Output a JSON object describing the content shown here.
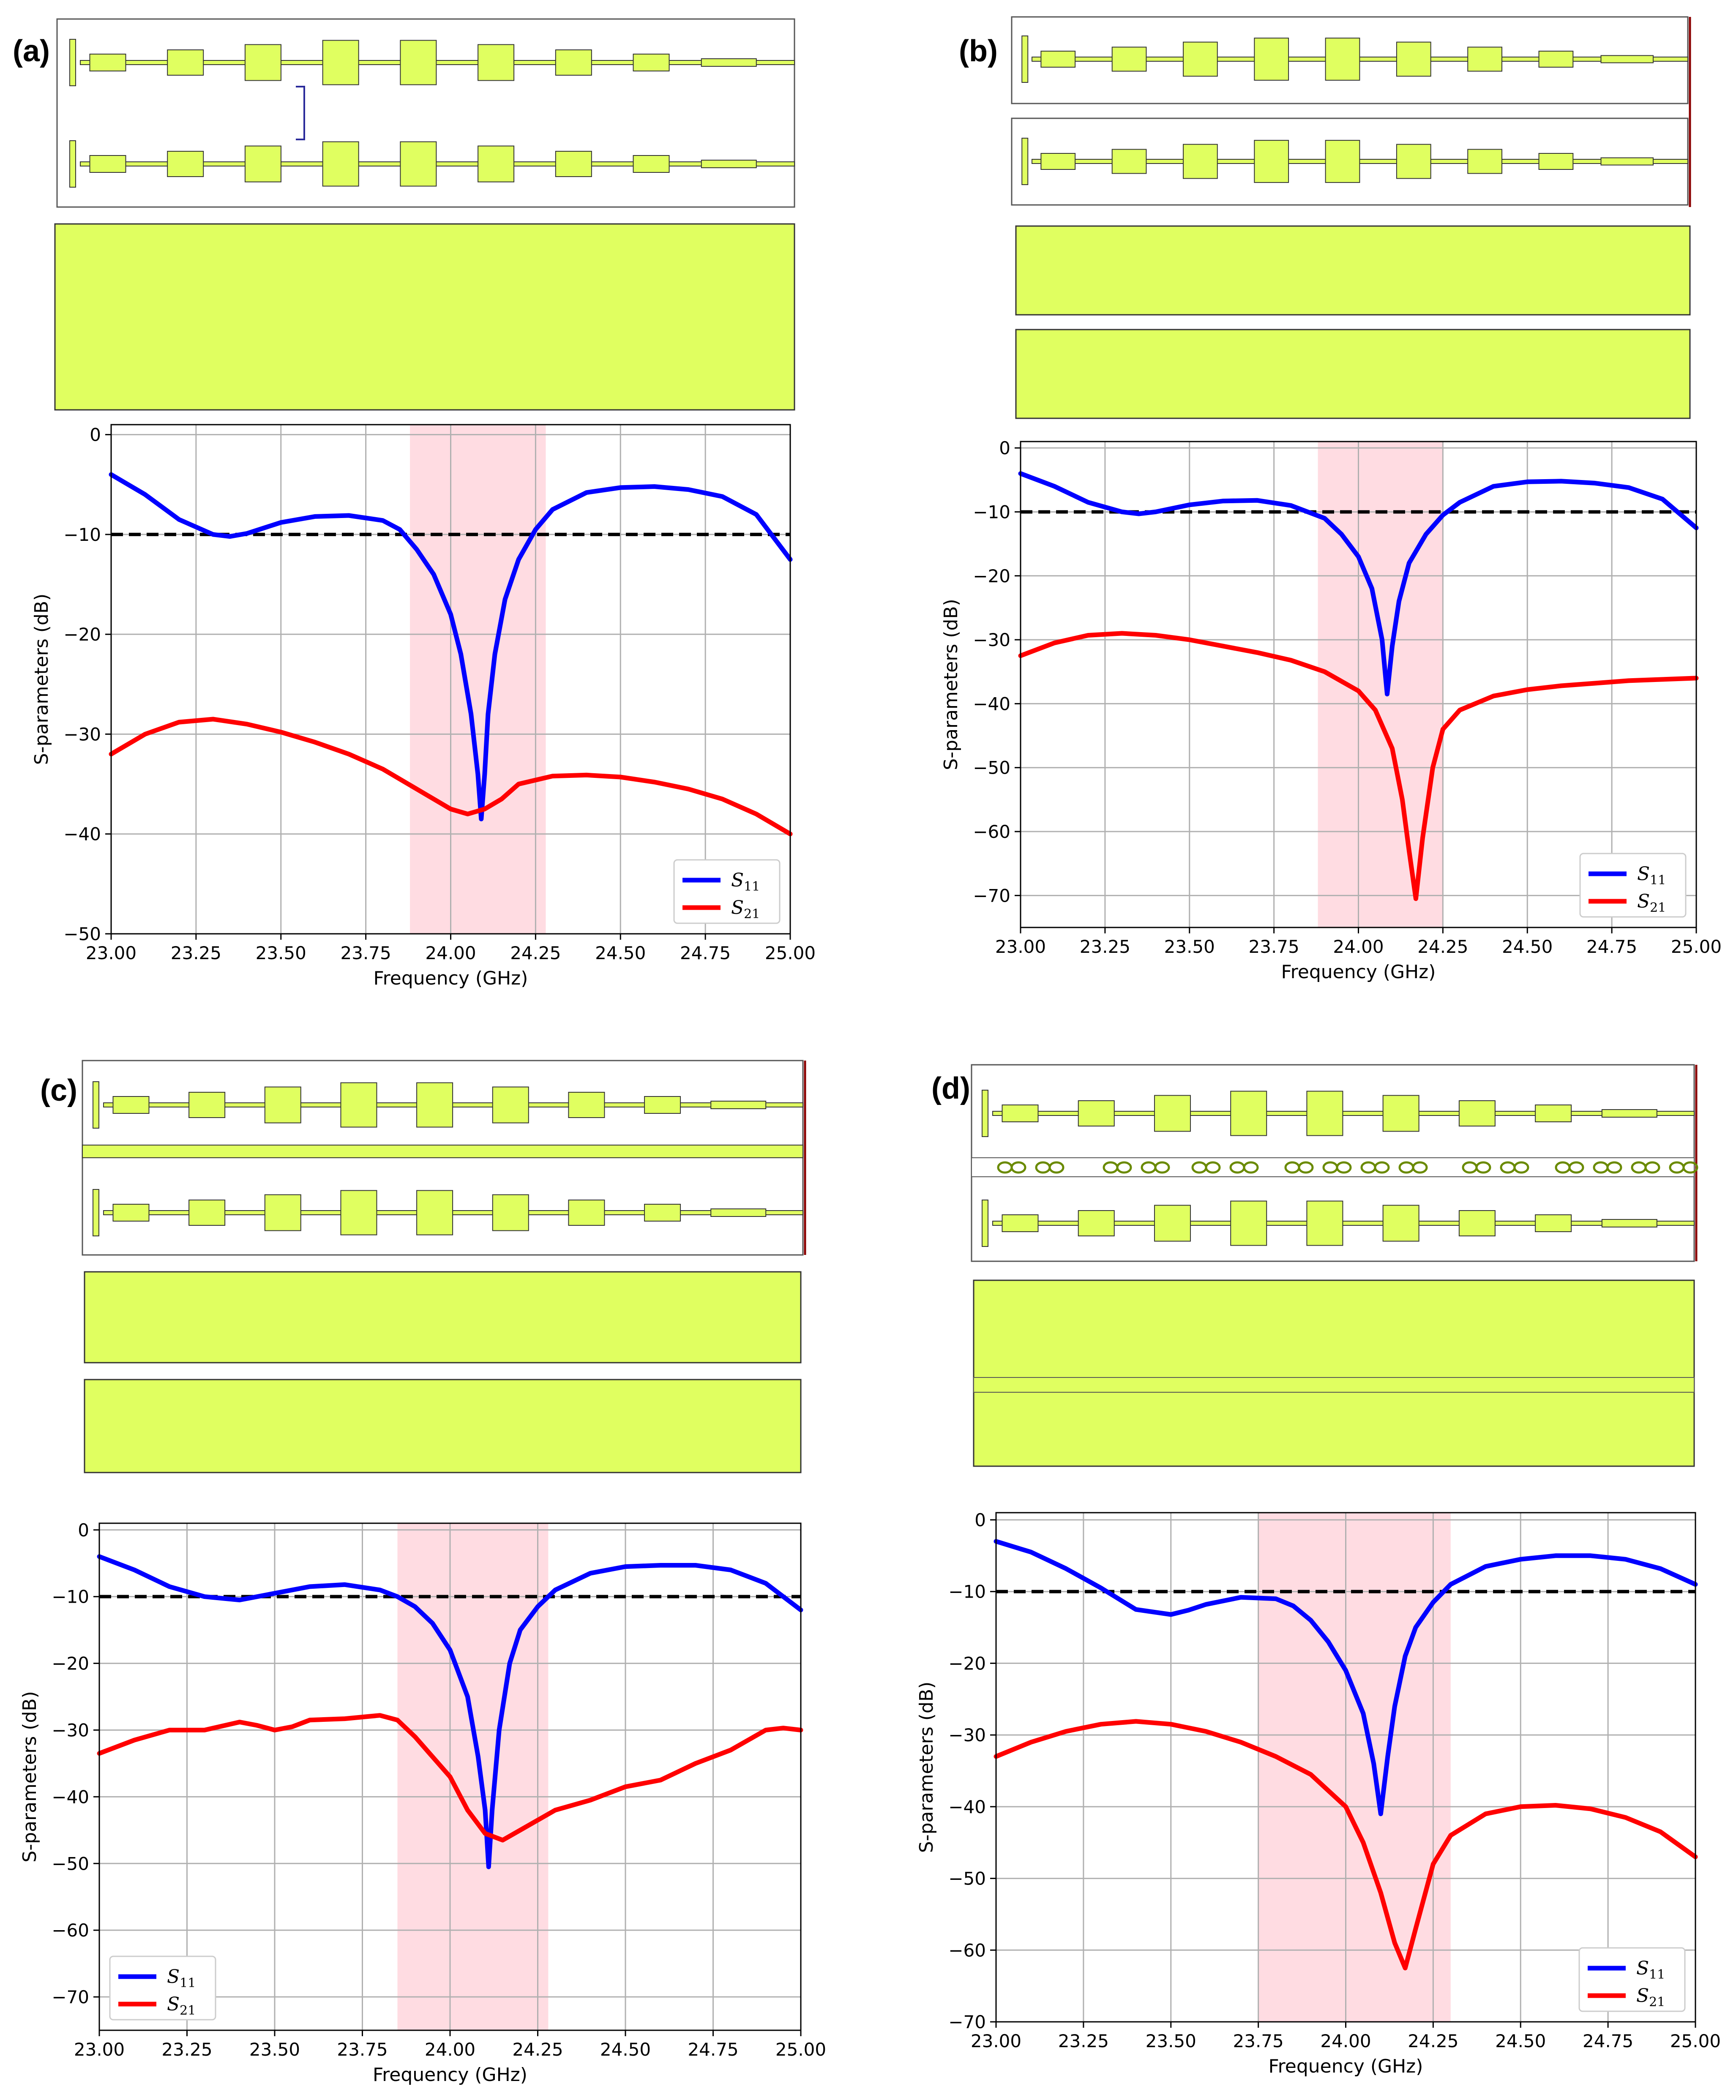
{
  "colors": {
    "patch": "#e0ff60",
    "s11": "#0000ff",
    "s21": "#ff0000",
    "band": "#ffc0cb",
    "threshold": "#000000"
  },
  "chart_data": [
    {
      "panel_label": "(a)",
      "type": "line",
      "xlabel": "Frequency (GHz)",
      "ylabel": "S-parameters (dB)",
      "xlim": [
        23.0,
        25.0
      ],
      "ylim": [
        -50,
        1
      ],
      "xticks": [
        "23.00",
        "23.25",
        "23.50",
        "23.75",
        "24.00",
        "24.25",
        "24.50",
        "24.75",
        "25.00"
      ],
      "yticks": [
        "0",
        "−10",
        "−20",
        "−30",
        "−40",
        "−50"
      ],
      "ytick_values": [
        0,
        -10,
        -20,
        -30,
        -40,
        -50
      ],
      "grid": true,
      "legend_position": "lower-right",
      "threshold_db": -10,
      "band": [
        23.88,
        24.28
      ],
      "series": [
        {
          "name": "S11",
          "x": [
            23.0,
            23.1,
            23.2,
            23.3,
            23.35,
            23.4,
            23.5,
            23.6,
            23.7,
            23.8,
            23.85,
            23.9,
            23.95,
            24.0,
            24.03,
            24.06,
            24.08,
            24.09,
            24.1,
            24.11,
            24.13,
            24.16,
            24.2,
            24.25,
            24.3,
            24.4,
            24.5,
            24.6,
            24.7,
            24.8,
            24.9,
            25.0
          ],
          "values": [
            -4,
            -6,
            -8.5,
            -10,
            -10.2,
            -9.9,
            -8.8,
            -8.2,
            -8.1,
            -8.6,
            -9.5,
            -11.5,
            -14,
            -18,
            -22,
            -28,
            -34,
            -38.5,
            -34,
            -28,
            -22,
            -16.5,
            -12.5,
            -9.5,
            -7.5,
            -5.8,
            -5.3,
            -5.2,
            -5.5,
            -6.2,
            -8,
            -12.5
          ]
        },
        {
          "name": "S21",
          "x": [
            23.0,
            23.1,
            23.2,
            23.3,
            23.4,
            23.5,
            23.6,
            23.7,
            23.8,
            23.9,
            24.0,
            24.05,
            24.1,
            24.15,
            24.2,
            24.3,
            24.4,
            24.5,
            24.6,
            24.7,
            24.8,
            24.9,
            25.0
          ],
          "values": [
            -32,
            -30,
            -28.8,
            -28.5,
            -29,
            -29.8,
            -30.8,
            -32,
            -33.5,
            -35.5,
            -37.5,
            -38,
            -37.5,
            -36.5,
            -35,
            -34.2,
            -34.1,
            -34.3,
            -34.8,
            -35.5,
            -36.5,
            -38,
            -40
          ]
        }
      ]
    },
    {
      "panel_label": "(b)",
      "type": "line",
      "xlabel": "Frequency (GHz)",
      "ylabel": "S-parameters (dB)",
      "xlim": [
        23.0,
        25.0
      ],
      "ylim": [
        -75,
        1
      ],
      "xticks": [
        "23.00",
        "23.25",
        "23.50",
        "23.75",
        "24.00",
        "24.25",
        "24.50",
        "24.75",
        "25.00"
      ],
      "yticks": [
        "0",
        "−10",
        "−20",
        "−30",
        "−40",
        "−50",
        "−60",
        "−70"
      ],
      "ytick_values": [
        0,
        -10,
        -20,
        -30,
        -40,
        -50,
        -60,
        -70
      ],
      "grid": true,
      "legend_position": "lower-right",
      "threshold_db": -10,
      "band": [
        23.88,
        24.25
      ],
      "series": [
        {
          "name": "S11",
          "x": [
            23.0,
            23.1,
            23.2,
            23.3,
            23.35,
            23.4,
            23.5,
            23.6,
            23.7,
            23.8,
            23.9,
            23.95,
            24.0,
            24.04,
            24.07,
            24.085,
            24.1,
            24.12,
            24.15,
            24.2,
            24.25,
            24.3,
            24.4,
            24.5,
            24.6,
            24.7,
            24.8,
            24.9,
            25.0
          ],
          "values": [
            -4,
            -6,
            -8.5,
            -10,
            -10.3,
            -10,
            -8.9,
            -8.3,
            -8.2,
            -9,
            -11,
            -13.5,
            -17,
            -22,
            -30,
            -38.5,
            -31,
            -24,
            -18,
            -13.5,
            -10.5,
            -8.5,
            -6,
            -5.3,
            -5.2,
            -5.5,
            -6.2,
            -8,
            -12.5
          ]
        },
        {
          "name": "S21",
          "x": [
            23.0,
            23.1,
            23.2,
            23.3,
            23.4,
            23.5,
            23.6,
            23.7,
            23.8,
            23.9,
            24.0,
            24.05,
            24.1,
            24.13,
            24.15,
            24.17,
            24.19,
            24.22,
            24.25,
            24.3,
            24.4,
            24.5,
            24.6,
            24.7,
            24.8,
            24.9,
            25.0
          ],
          "values": [
            -32.5,
            -30.5,
            -29.3,
            -29,
            -29.3,
            -30,
            -31,
            -32,
            -33.2,
            -35,
            -38,
            -41,
            -47,
            -55,
            -63,
            -70.5,
            -61,
            -50,
            -44,
            -41,
            -38.8,
            -37.8,
            -37.2,
            -36.8,
            -36.4,
            -36.2,
            -36
          ]
        }
      ]
    },
    {
      "panel_label": "(c)",
      "type": "line",
      "xlabel": "Frequency (GHz)",
      "ylabel": "S-parameters (dB)",
      "xlim": [
        23.0,
        25.0
      ],
      "ylim": [
        -75,
        1
      ],
      "xticks": [
        "23.00",
        "23.25",
        "23.50",
        "23.75",
        "24.00",
        "24.25",
        "24.50",
        "24.75",
        "25.00"
      ],
      "yticks": [
        "0",
        "−10",
        "−20",
        "−30",
        "−40",
        "−50",
        "−60",
        "−70"
      ],
      "ytick_values": [
        0,
        -10,
        -20,
        -30,
        -40,
        -50,
        -60,
        -70
      ],
      "grid": true,
      "legend_position": "lower-left",
      "threshold_db": -10,
      "band": [
        23.85,
        24.28
      ],
      "series": [
        {
          "name": "S11",
          "x": [
            23.0,
            23.1,
            23.2,
            23.3,
            23.4,
            23.5,
            23.6,
            23.7,
            23.8,
            23.85,
            23.9,
            23.95,
            24.0,
            24.05,
            24.08,
            24.1,
            24.11,
            24.12,
            24.14,
            24.17,
            24.2,
            24.25,
            24.3,
            24.4,
            24.5,
            24.6,
            24.7,
            24.8,
            24.9,
            25.0
          ],
          "values": [
            -4,
            -6,
            -8.5,
            -10,
            -10.5,
            -9.5,
            -8.5,
            -8.2,
            -9,
            -10,
            -11.5,
            -14,
            -18,
            -25,
            -34,
            -42,
            -50.5,
            -42,
            -30,
            -20,
            -15,
            -11.5,
            -9,
            -6.5,
            -5.5,
            -5.3,
            -5.3,
            -6,
            -8,
            -12
          ]
        },
        {
          "name": "S21",
          "x": [
            23.0,
            23.1,
            23.2,
            23.3,
            23.4,
            23.45,
            23.5,
            23.55,
            23.6,
            23.7,
            23.8,
            23.85,
            23.9,
            24.0,
            24.05,
            24.1,
            24.15,
            24.2,
            24.3,
            24.4,
            24.5,
            24.6,
            24.7,
            24.8,
            24.9,
            24.95,
            25.0
          ],
          "values": [
            -33.5,
            -31.5,
            -30,
            -30,
            -28.8,
            -29.3,
            -30,
            -29.5,
            -28.5,
            -28.3,
            -27.8,
            -28.5,
            -31,
            -37,
            -42,
            -45.5,
            -46.5,
            -45,
            -42,
            -40.5,
            -38.5,
            -37.5,
            -35,
            -33,
            -30,
            -29.7,
            -30
          ]
        }
      ]
    },
    {
      "panel_label": "(d)",
      "type": "line",
      "xlabel": "Frequency (GHz)",
      "ylabel": "S-parameters (dB)",
      "xlim": [
        23.0,
        25.0
      ],
      "ylim": [
        -70,
        1
      ],
      "xticks": [
        "23.00",
        "23.25",
        "23.50",
        "23.75",
        "24.00",
        "24.25",
        "24.50",
        "24.75",
        "25.00"
      ],
      "yticks": [
        "0",
        "−10",
        "−20",
        "−30",
        "−40",
        "−50",
        "−60",
        "−70"
      ],
      "ytick_values": [
        0,
        -10,
        -20,
        -30,
        -40,
        -50,
        -60,
        -70
      ],
      "grid": true,
      "legend_position": "lower-right",
      "threshold_db": -10,
      "band": [
        23.75,
        24.3
      ],
      "series": [
        {
          "name": "S11",
          "x": [
            23.0,
            23.1,
            23.2,
            23.3,
            23.4,
            23.5,
            23.55,
            23.6,
            23.7,
            23.8,
            23.85,
            23.9,
            23.95,
            24.0,
            24.05,
            24.08,
            24.1,
            24.12,
            24.14,
            24.17,
            24.2,
            24.25,
            24.3,
            24.4,
            24.5,
            24.6,
            24.7,
            24.8,
            24.9,
            25.0
          ],
          "values": [
            -3,
            -4.5,
            -6.8,
            -9.5,
            -12.5,
            -13.2,
            -12.6,
            -11.8,
            -10.8,
            -11,
            -12,
            -14,
            -17,
            -21,
            -27,
            -34,
            -41,
            -33,
            -26,
            -19,
            -15,
            -11.5,
            -9,
            -6.5,
            -5.5,
            -5,
            -5,
            -5.5,
            -6.8,
            -9
          ]
        },
        {
          "name": "S21",
          "x": [
            23.0,
            23.1,
            23.2,
            23.3,
            23.4,
            23.5,
            23.6,
            23.7,
            23.8,
            23.9,
            24.0,
            24.05,
            24.1,
            24.14,
            24.17,
            24.2,
            24.25,
            24.3,
            24.4,
            24.5,
            24.6,
            24.7,
            24.8,
            24.9,
            25.0
          ],
          "values": [
            -33,
            -31,
            -29.5,
            -28.5,
            -28.1,
            -28.5,
            -29.5,
            -31,
            -33,
            -35.5,
            -40,
            -45,
            -52,
            -59,
            -62.5,
            -57,
            -48,
            -44,
            -41,
            -40,
            -39.8,
            -40.3,
            -41.5,
            -43.5,
            -47
          ]
        }
      ]
    }
  ]
}
